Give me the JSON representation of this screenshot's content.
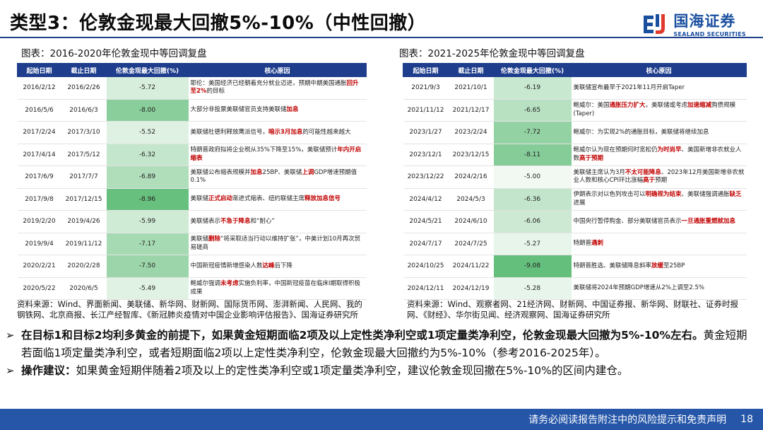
{
  "title": "类型3：伦敦金现最大回撤5%-10%（中性回撤）",
  "logo": {
    "cn": "国海证券",
    "en": "SEALAND SECURITIES",
    "brand_color": "#1a4fa0"
  },
  "colors": {
    "header_bg": "#1e3d8c",
    "highlight_text": "#c00000"
  },
  "left_panel": {
    "title": "图表：2016-2020年伦敦金现中等回调复盘",
    "headers": [
      "起始日期",
      "截止日期",
      "伦敦金现最大回撤(%)",
      "核心原因"
    ],
    "rows": [
      {
        "start": "2016/2/12",
        "end": "2016/2/26",
        "drawdown": "-5.72",
        "drawdown_value": -5.72,
        "cause": [
          {
            "t": "耶伦：美国经济已经朝着充分就业迈进，预期中期美国通胀"
          },
          {
            "t": "回升至2%",
            "h": true
          },
          {
            "t": "的目标"
          }
        ]
      },
      {
        "start": "2016/5/6",
        "end": "2016/6/3",
        "drawdown": "-8.00",
        "drawdown_value": -8.0,
        "cause": [
          {
            "t": "大部分非投票美联储官员支持美联储"
          },
          {
            "t": "加息",
            "h": true
          }
        ]
      },
      {
        "start": "2017/2/24",
        "end": "2017/3/10",
        "drawdown": "-5.52",
        "drawdown_value": -5.52,
        "cause": [
          {
            "t": "美联储杜德利释放鹰派信号，"
          },
          {
            "t": "暗示3月加息",
            "h": true
          },
          {
            "t": "的可能性越来越大"
          }
        ]
      },
      {
        "start": "2017/4/14",
        "end": "2017/5/12",
        "drawdown": "-6.32",
        "drawdown_value": -6.32,
        "cause": [
          {
            "t": "特朗普政府拟将企业税从35%下降至15%，美联储预计"
          },
          {
            "t": "年内开启缩表",
            "h": true
          }
        ]
      },
      {
        "start": "2017/6/9",
        "end": "2017/7/7",
        "drawdown": "-6.89",
        "drawdown_value": -6.89,
        "cause": [
          {
            "t": "美联储公布缩表规模并"
          },
          {
            "t": "加息",
            "h": true
          },
          {
            "t": "25BP、美联储"
          },
          {
            "t": "上调",
            "h": true
          },
          {
            "t": "GDP增速预期值0.1%"
          }
        ]
      },
      {
        "start": "2017/9/8",
        "end": "2017/12/15",
        "drawdown": "-8.96",
        "drawdown_value": -8.96,
        "cause": [
          {
            "t": "美联储"
          },
          {
            "t": "正式启动",
            "h": true
          },
          {
            "t": "渐进式缩表、纽约联储主席"
          },
          {
            "t": "释放加息信号",
            "h": true
          }
        ]
      },
      {
        "start": "2019/2/20",
        "end": "2019/4/26",
        "drawdown": "-5.99",
        "drawdown_value": -5.99,
        "cause": [
          {
            "t": "美联储表示"
          },
          {
            "t": "不急于降息",
            "h": true
          },
          {
            "t": "和“耐心”"
          }
        ]
      },
      {
        "start": "2019/9/4",
        "end": "2019/11/12",
        "drawdown": "-7.17",
        "drawdown_value": -7.17,
        "cause": [
          {
            "t": "美联储"
          },
          {
            "t": "删除",
            "h": true
          },
          {
            "t": "“将采取适当行动以维持扩张”，中美计划10月再次贸易磋商"
          }
        ]
      },
      {
        "start": "2020/2/21",
        "end": "2020/2/28",
        "drawdown": "-7.50",
        "drawdown_value": -7.5,
        "cause": [
          {
            "t": "中国新冠疫情新增感染人数"
          },
          {
            "t": "达峰",
            "h": true
          },
          {
            "t": "后下降"
          }
        ]
      },
      {
        "start": "2020/5/22",
        "end": "2020/6/5",
        "drawdown": "-5.49",
        "drawdown_value": -5.49,
        "cause": [
          {
            "t": "鲍威尔强调"
          },
          {
            "t": "未考虑",
            "h": true
          },
          {
            "t": "实施负利率，中国新冠疫苗在临床Ⅰ期取得积极成果"
          }
        ]
      }
    ],
    "source": "资料来源：Wind、界面新闻、美联储、新华网、财新网、国际货币网、澎湃新闻、人民网、我的钢铁网、北京商报、长江产经智库、《新冠肺炎疫情对中国企业影响评估报告》、国海证券研究所"
  },
  "right_panel": {
    "title": "图表：2021-2025年伦敦金现中等回调复盘",
    "headers": [
      "起始日期",
      "截止日期",
      "伦敦金现最大回撤(%)",
      "核心原因"
    ],
    "rows": [
      {
        "start": "2021/9/3",
        "end": "2021/10/1",
        "drawdown": "-6.19",
        "drawdown_value": -6.19,
        "cause": [
          {
            "t": "美联储宣布最早于2021年11月开启Taper"
          }
        ]
      },
      {
        "start": "2021/11/12",
        "end": "2021/12/17",
        "drawdown": "-6.65",
        "drawdown_value": -6.65,
        "cause": [
          {
            "t": "鲍威尔：美国"
          },
          {
            "t": "通胀压力扩大",
            "h": true
          },
          {
            "t": "，美联储或考虑"
          },
          {
            "t": "加速缩减",
            "h": true
          },
          {
            "t": "购债规模(Taper)"
          }
        ]
      },
      {
        "start": "2023/1/27",
        "end": "2023/2/24",
        "drawdown": "-7.72",
        "drawdown_value": -7.72,
        "cause": [
          {
            "t": "鲍威尔：为实现2%的通胀目标，美联储将继续加息"
          }
        ]
      },
      {
        "start": "2023/12/1",
        "end": "2023/12/15",
        "drawdown": "-8.11",
        "drawdown_value": -8.11,
        "cause": [
          {
            "t": "鲍威尔认为现在预期何时宽松仍"
          },
          {
            "t": "为时尚早",
            "h": true
          },
          {
            "t": "、美国新增非农就业人数"
          },
          {
            "t": "高于预期",
            "h": true
          }
        ]
      },
      {
        "start": "2023/12/22",
        "end": "2024/2/16",
        "drawdown": "-5.00",
        "drawdown_value": -5.0,
        "cause": [
          {
            "t": "美联储主席认为3月"
          },
          {
            "t": "不太可能降息",
            "h": true
          },
          {
            "t": "、2023年12月美国新增非农就业人数和核心CPI环比涨幅"
          },
          {
            "t": "高于",
            "h": true
          },
          {
            "t": "预期"
          }
        ]
      },
      {
        "start": "2024/4/12",
        "end": "2024/5/3",
        "drawdown": "-6.36",
        "drawdown_value": -6.36,
        "cause": [
          {
            "t": "伊朗表示对以色列攻击可以"
          },
          {
            "t": "明确视为结束",
            "h": true
          },
          {
            "t": "、美联储强调通胀"
          },
          {
            "t": "缺乏",
            "h": true
          },
          {
            "t": "进展"
          }
        ]
      },
      {
        "start": "2024/5/21",
        "end": "2024/6/10",
        "drawdown": "-6.06",
        "drawdown_value": -6.06,
        "cause": [
          {
            "t": "中国央行暂停购金、部分美联储官员表示"
          },
          {
            "t": "一旦通胀重燃就加息",
            "h": true
          }
        ]
      },
      {
        "start": "2024/7/17",
        "end": "2024/7/25",
        "drawdown": "-5.27",
        "drawdown_value": -5.27,
        "cause": [
          {
            "t": "特朗普"
          },
          {
            "t": "遇刺",
            "h": true
          }
        ]
      },
      {
        "start": "2024/10/25",
        "end": "2024/11/22",
        "drawdown": "-9.08",
        "drawdown_value": -9.08,
        "cause": [
          {
            "t": "特朗普胜选、美联储降息斜率"
          },
          {
            "t": "放缓",
            "h": true
          },
          {
            "t": "至25BP"
          }
        ]
      },
      {
        "start": "2024/12/11",
        "end": "2024/12/19",
        "drawdown": "-5.28",
        "drawdown_value": -5.28,
        "cause": [
          {
            "t": "美联储将2024年预期GDP增速从2%上调至2.5%"
          }
        ]
      }
    ],
    "source": "资料来源：Wind、观察者网、21经济网、财新网、中国证券报、新华网、财联社、证券时报网、《财经》、华尔街见闻、经济观察网、国海证券研究所"
  },
  "bullets": [
    {
      "bold_prefix": "",
      "text_bold": "在目标1和目标2均利多黄金的前提下，如果黄金短期面临2项及以上定性类净利空或1项定量类净利空，伦敦金现最大回撤为5%-10%左右。",
      "text": "黄金短期若面临1项定量类净利空，或者短期面临2项以上定性类净利空，伦敦金现最大回撤约为5%-10%（参考2016-2025年）。"
    },
    {
      "bold_prefix": "操作建议：",
      "text_bold": "",
      "text": "如果黄金短期伴随着2项及以上的定性类净利空或1项定量类净利空，建议伦敦金现回撤在5%-10%的区间内建仓。"
    }
  ],
  "footer": {
    "disclaimer": "请务必阅读报告附注中的风险提示和免责声明",
    "page": "18"
  }
}
